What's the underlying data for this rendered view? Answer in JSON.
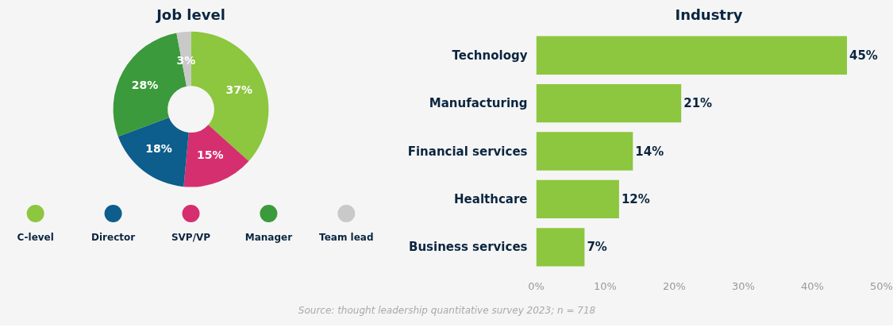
{
  "chart_data": [
    {
      "type": "donut",
      "title": "Job level",
      "categories": [
        "C-level",
        "SVP/VP",
        "Director",
        "Manager",
        "Team lead"
      ],
      "values": [
        37,
        15,
        18,
        28,
        3
      ],
      "colors": [
        "#8dc63f",
        "#d52f6f",
        "#0d5e8c",
        "#3b9a3b",
        "#c9c9c9"
      ],
      "value_labels": [
        "37%",
        "15%",
        "18%",
        "28%",
        "3%"
      ],
      "legend": "bottom"
    },
    {
      "type": "bar",
      "orientation": "horizontal",
      "title": "Industry",
      "categories": [
        "Technology",
        "Manufacturing",
        "Financial services",
        "Healthcare",
        "Business services"
      ],
      "values": [
        45,
        21,
        14,
        12,
        7
      ],
      "color": "#8dc63f",
      "value_labels": [
        "45%",
        "21%",
        "14%",
        "12%",
        "7%"
      ],
      "xlim": [
        0,
        50
      ],
      "xticks": [
        {
          "value": 0,
          "label": "0%"
        },
        {
          "value": 10,
          "label": "10%"
        },
        {
          "value": 20,
          "label": "20%"
        },
        {
          "value": 30,
          "label": "30%"
        },
        {
          "value": 40,
          "label": "40%"
        },
        {
          "value": 50,
          "label": "50%"
        }
      ],
      "grid": false,
      "annotations": [
        "Source: thought leadership quantitative survey 2023; n = 718"
      ]
    }
  ]
}
